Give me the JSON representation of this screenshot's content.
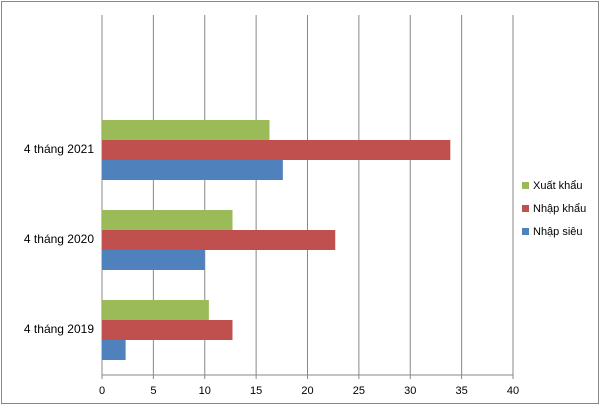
{
  "chart_data": {
    "type": "bar",
    "orientation": "horizontal",
    "categories": [
      "4 tháng 2019",
      "4 tháng 2020",
      "4 tháng 2021",
      null
    ],
    "series": [
      {
        "name": "Xuất khẩu",
        "color": "#9bbb59",
        "values": [
          10.4,
          12.7,
          16.3,
          null
        ]
      },
      {
        "name": "Nhập khẩu",
        "color": "#c0504d",
        "values": [
          12.7,
          22.7,
          33.9,
          null
        ]
      },
      {
        "name": "Nhập siêu",
        "color": "#4f81bd",
        "values": [
          2.3,
          10.0,
          17.6,
          null
        ]
      }
    ],
    "xlim": [
      0,
      40
    ],
    "xticks": [
      0,
      5,
      10,
      15,
      20,
      25,
      30,
      35,
      40
    ],
    "grid": true,
    "legend": "right"
  }
}
